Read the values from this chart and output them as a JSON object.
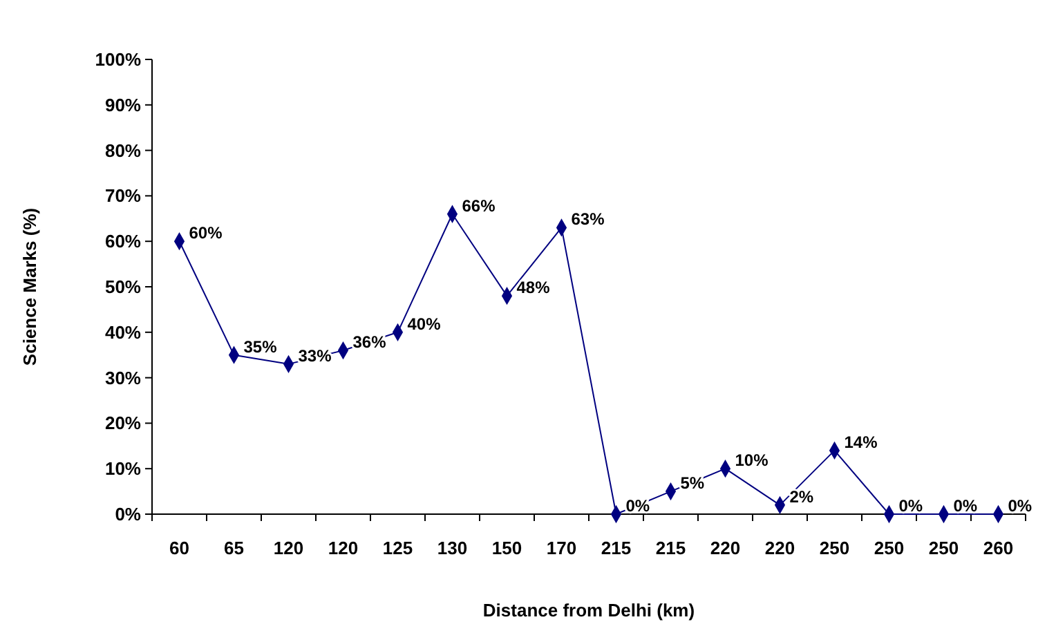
{
  "chart_data": {
    "type": "line",
    "xlabel": "Distance from Delhi (km)",
    "ylabel": "Science Marks (%)",
    "categories": [
      "60",
      "65",
      "120",
      "120",
      "125",
      "130",
      "150",
      "170",
      "215",
      "215",
      "220",
      "220",
      "250",
      "250",
      "250",
      "260"
    ],
    "series": [
      {
        "color": "#000080",
        "values": [
          60,
          35,
          33,
          36,
          40,
          66,
          48,
          63,
          0,
          5,
          10,
          2,
          14,
          0,
          0,
          0
        ],
        "value_labels": [
          "60%",
          "35%",
          "33%",
          "36%",
          "40%",
          "66%",
          "48%",
          "63%",
          "0%",
          "5%",
          "10%",
          "2%",
          "14%",
          "0%",
          "0%",
          "0%"
        ]
      }
    ],
    "ylim": [
      0,
      100
    ],
    "yticks": [
      {
        "value": 0,
        "label": "0%"
      },
      {
        "value": 10,
        "label": "10%"
      },
      {
        "value": 20,
        "label": "20%"
      },
      {
        "value": 30,
        "label": "30%"
      },
      {
        "value": 40,
        "label": "40%"
      },
      {
        "value": 50,
        "label": "50%"
      },
      {
        "value": 60,
        "label": "60%"
      },
      {
        "value": 70,
        "label": "70%"
      },
      {
        "value": 80,
        "label": "80%"
      },
      {
        "value": 90,
        "label": "90%"
      },
      {
        "value": 100,
        "label": "100%"
      }
    ],
    "grid": false,
    "marker": "diamond",
    "line_style": "solid"
  }
}
